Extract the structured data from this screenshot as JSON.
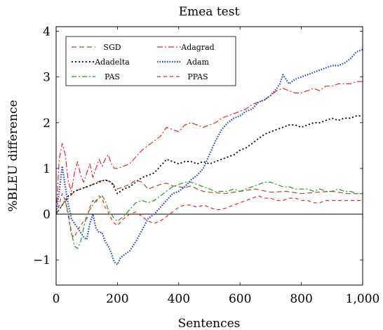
{
  "chart_data": {
    "type": "line",
    "title": "Emea test",
    "xlabel": "Sentences",
    "ylabel": "%BLEU difference",
    "xlim": [
      0,
      1000
    ],
    "ylim": [
      -1.55,
      4.1
    ],
    "x_ticks": [
      0,
      200,
      400,
      600,
      800,
      1000
    ],
    "x_tick_labels": [
      "0",
      "200",
      "400",
      "600",
      "800",
      "1,000"
    ],
    "y_ticks": [
      -1,
      0,
      1,
      2,
      3,
      4
    ],
    "y_tick_labels": [
      "−1",
      "0",
      "1",
      "2",
      "3",
      "4"
    ],
    "grid": false,
    "legend_position": "top-left",
    "reference_line": 0,
    "series": [
      {
        "name": "SGD",
        "color": "#a0522d",
        "dash": "7 4",
        "stroke_width": 1.2,
        "x": [
          0,
          20,
          40,
          60,
          80,
          100,
          120,
          140,
          160,
          180,
          200,
          220,
          240,
          260,
          280,
          300,
          320,
          340,
          360,
          380,
          400,
          420,
          440,
          460,
          480,
          500,
          550,
          600,
          650,
          700,
          750,
          800,
          850,
          900,
          950,
          1000
        ],
        "y": [
          0,
          0.2,
          0.35,
          0.5,
          0.55,
          0.6,
          0.65,
          0.72,
          0.75,
          0.7,
          0.55,
          0.6,
          0.65,
          0.75,
          0.7,
          0.55,
          0.6,
          0.65,
          0.68,
          0.62,
          0.6,
          0.58,
          0.62,
          0.55,
          0.5,
          0.48,
          0.45,
          0.5,
          0.55,
          0.48,
          0.5,
          0.45,
          0.48,
          0.5,
          0.45,
          0.45
        ]
      },
      {
        "name": "Adagrad",
        "color": "#e8262a",
        "dash": "8 3 2 3",
        "stroke_width": 1.2,
        "x": [
          0,
          10,
          20,
          30,
          40,
          50,
          60,
          70,
          80,
          90,
          100,
          110,
          120,
          130,
          140,
          150,
          160,
          170,
          180,
          190,
          200,
          220,
          240,
          260,
          280,
          300,
          320,
          340,
          360,
          380,
          400,
          420,
          440,
          460,
          480,
          500,
          520,
          540,
          560,
          580,
          600,
          620,
          640,
          660,
          680,
          700,
          720,
          740,
          760,
          780,
          800,
          820,
          840,
          860,
          880,
          900,
          920,
          940,
          960,
          980,
          1000
        ],
        "y": [
          0,
          1.2,
          1.55,
          1.3,
          0.7,
          0.5,
          0.9,
          1.15,
          0.85,
          0.7,
          0.9,
          1.1,
          0.8,
          1.0,
          1.2,
          1.05,
          1.2,
          1.3,
          1.1,
          1.0,
          1.0,
          1.05,
          1.1,
          1.25,
          1.4,
          1.5,
          1.6,
          1.7,
          1.9,
          1.85,
          1.8,
          1.95,
          2.0,
          1.95,
          1.9,
          1.95,
          2.0,
          2.1,
          2.15,
          2.2,
          2.25,
          2.3,
          2.4,
          2.45,
          2.5,
          2.6,
          2.7,
          2.75,
          2.7,
          2.65,
          2.65,
          2.7,
          2.75,
          2.7,
          2.8,
          2.8,
          2.85,
          2.85,
          2.85,
          2.9,
          2.9
        ]
      },
      {
        "name": "Adadelta",
        "color": "#000000",
        "dash": "2 3",
        "stroke_width": 1.8,
        "x": [
          0,
          20,
          40,
          60,
          80,
          100,
          120,
          140,
          160,
          180,
          200,
          220,
          240,
          260,
          280,
          300,
          320,
          340,
          360,
          380,
          400,
          420,
          440,
          460,
          480,
          500,
          520,
          540,
          560,
          580,
          600,
          620,
          640,
          660,
          680,
          700,
          720,
          740,
          760,
          780,
          800,
          820,
          840,
          860,
          880,
          900,
          920,
          940,
          960,
          980,
          1000
        ],
        "y": [
          0,
          0.2,
          0.4,
          0.5,
          0.55,
          0.6,
          0.65,
          0.7,
          0.75,
          0.7,
          0.45,
          0.55,
          0.6,
          0.7,
          0.8,
          0.85,
          0.9,
          1.05,
          1.2,
          1.15,
          1.1,
          1.15,
          1.15,
          1.1,
          1.15,
          1.1,
          1.15,
          1.2,
          1.25,
          1.3,
          1.4,
          1.45,
          1.55,
          1.65,
          1.75,
          1.8,
          1.85,
          1.9,
          1.95,
          1.95,
          1.9,
          1.95,
          2.0,
          2.0,
          2.05,
          2.1,
          2.05,
          2.1,
          2.1,
          2.15,
          2.15
        ]
      },
      {
        "name": "Adam",
        "color": "#1f3fe0",
        "dash": "1.5 2",
        "stroke_width": 2.2,
        "x": [
          0,
          10,
          20,
          30,
          40,
          50,
          60,
          70,
          80,
          90,
          100,
          110,
          120,
          130,
          140,
          150,
          160,
          170,
          180,
          190,
          200,
          210,
          220,
          240,
          260,
          280,
          300,
          320,
          340,
          360,
          380,
          400,
          420,
          440,
          460,
          480,
          500,
          520,
          540,
          560,
          580,
          600,
          620,
          640,
          660,
          680,
          700,
          720,
          730,
          740,
          760,
          780,
          800,
          820,
          840,
          860,
          880,
          900,
          920,
          940,
          960,
          980,
          1000
        ],
        "y": [
          0,
          0.5,
          1.05,
          0.6,
          0.2,
          -0.1,
          -0.2,
          -0.3,
          -0.4,
          -0.5,
          -0.55,
          -0.2,
          0.0,
          -0.3,
          -0.4,
          -0.4,
          -0.6,
          -0.7,
          -0.85,
          -1.05,
          -1.1,
          -0.95,
          -0.9,
          -0.8,
          -0.6,
          -0.35,
          -0.1,
          0.0,
          0.15,
          0.3,
          0.45,
          0.5,
          0.6,
          0.75,
          0.85,
          1.0,
          1.3,
          1.6,
          1.85,
          2.0,
          2.1,
          2.15,
          2.25,
          2.3,
          2.45,
          2.5,
          2.6,
          2.75,
          2.85,
          3.05,
          2.85,
          2.95,
          3.0,
          3.05,
          3.1,
          3.15,
          3.2,
          3.25,
          3.25,
          3.3,
          3.4,
          3.55,
          3.6
        ]
      },
      {
        "name": "PAS",
        "color": "#1f9a1f",
        "dash": "7 3 2 3",
        "stroke_width": 1.2,
        "x": [
          0,
          10,
          20,
          30,
          40,
          50,
          60,
          70,
          80,
          90,
          100,
          110,
          120,
          130,
          140,
          150,
          160,
          170,
          180,
          190,
          200,
          220,
          240,
          260,
          280,
          300,
          320,
          340,
          360,
          380,
          400,
          420,
          440,
          460,
          480,
          500,
          520,
          540,
          560,
          580,
          600,
          620,
          640,
          660,
          680,
          700,
          720,
          740,
          760,
          780,
          800,
          820,
          840,
          860,
          880,
          900,
          920,
          940,
          960,
          980,
          1000
        ],
        "y": [
          0,
          0.1,
          0.2,
          0.3,
          0.0,
          -0.4,
          -0.7,
          -0.75,
          -0.6,
          -0.3,
          0.0,
          0.1,
          0.2,
          0.3,
          0.35,
          0.4,
          0.3,
          0.1,
          0.0,
          -0.1,
          -0.15,
          -0.05,
          0.1,
          0.25,
          0.3,
          0.25,
          0.3,
          0.4,
          0.5,
          0.6,
          0.65,
          0.7,
          0.7,
          0.65,
          0.6,
          0.55,
          0.5,
          0.5,
          0.5,
          0.55,
          0.5,
          0.55,
          0.6,
          0.65,
          0.7,
          0.7,
          0.65,
          0.6,
          0.6,
          0.55,
          0.55,
          0.55,
          0.5,
          0.55,
          0.5,
          0.5,
          0.55,
          0.5,
          0.5,
          0.45,
          0.45
        ]
      },
      {
        "name": "PPAS",
        "color": "#e8262a",
        "dash": "5 4",
        "stroke_width": 1.2,
        "x": [
          0,
          10,
          20,
          30,
          40,
          50,
          60,
          70,
          80,
          90,
          100,
          110,
          120,
          130,
          140,
          150,
          160,
          170,
          180,
          190,
          200,
          220,
          240,
          260,
          280,
          300,
          320,
          340,
          360,
          380,
          400,
          420,
          440,
          460,
          480,
          500,
          520,
          540,
          560,
          580,
          600,
          620,
          640,
          660,
          680,
          700,
          720,
          740,
          760,
          780,
          800,
          820,
          840,
          860,
          880,
          900,
          920,
          940,
          960,
          980,
          1000
        ],
        "y": [
          0,
          0.2,
          0.45,
          0.3,
          -0.05,
          -0.45,
          -0.5,
          -0.35,
          -0.25,
          -0.15,
          -0.1,
          0.15,
          0.3,
          0.25,
          0.4,
          0.35,
          0.15,
          0.05,
          -0.1,
          -0.2,
          -0.25,
          -0.1,
          0.0,
          0.05,
          -0.05,
          -0.15,
          -0.2,
          -0.15,
          -0.05,
          0.05,
          0.15,
          0.2,
          0.2,
          0.15,
          0.2,
          0.15,
          0.1,
          0.1,
          0.15,
          0.2,
          0.25,
          0.3,
          0.35,
          0.4,
          0.35,
          0.35,
          0.3,
          0.3,
          0.35,
          0.35,
          0.3,
          0.3,
          0.25,
          0.25,
          0.3,
          0.3,
          0.3,
          0.3,
          0.3,
          0.3,
          0.3
        ]
      }
    ]
  }
}
